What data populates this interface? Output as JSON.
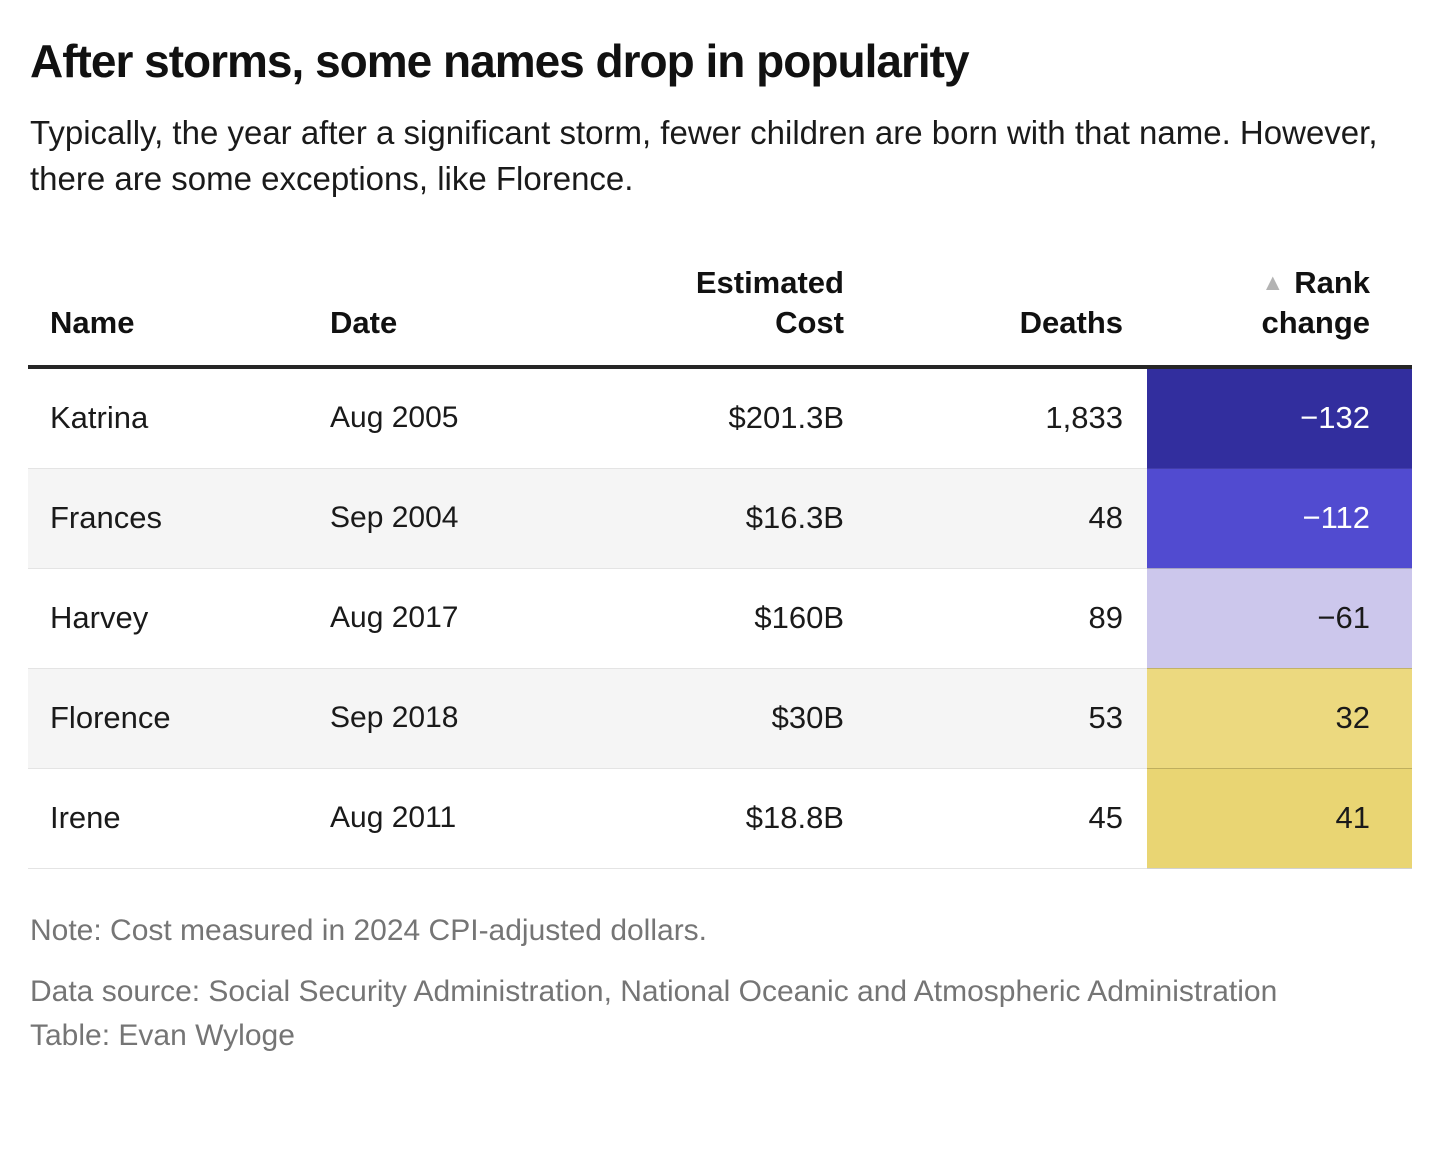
{
  "title": "After storms, some names drop in popularity",
  "subtitle": "Typically, the year after a significant storm, fewer children are born with that name. However, there are some exceptions, like Florence.",
  "colors": {
    "rank_negative_strong": "#322e9e",
    "rank_negative_medium": "#514bd0",
    "rank_negative_light": "#ccc7ec",
    "rank_positive_light": "#ecd97f",
    "rank_positive_medium": "#e9d573",
    "header_rule": "#262626",
    "row_stripe": "#f5f5f5",
    "footer_text": "#757575",
    "sort_icon_color": "#b3b3b3"
  },
  "table": {
    "header": {
      "name": "Name",
      "date": "Date",
      "cost_line1": "Estimated",
      "cost_line2": "Cost",
      "deaths": "Deaths",
      "rank_line1": "Rank",
      "rank_line2": "change",
      "sort_icon": "triangle-up",
      "sort_glyph": "▲"
    },
    "rows": [
      {
        "name": "Katrina",
        "date": "Aug 2005",
        "cost": "$201.3B",
        "deaths": "1,833",
        "rank_change": "−132",
        "rank_bg": "#322e9e",
        "rank_fg": "#ffffff"
      },
      {
        "name": "Frances",
        "date": "Sep 2004",
        "cost": "$16.3B",
        "deaths": "48",
        "rank_change": "−112",
        "rank_bg": "#514bd0",
        "rank_fg": "#ffffff"
      },
      {
        "name": "Harvey",
        "date": "Aug 2017",
        "cost": "$160B",
        "deaths": "89",
        "rank_change": "−61",
        "rank_bg": "#ccc7ec",
        "rank_fg": "#1a1a1a"
      },
      {
        "name": "Florence",
        "date": "Sep 2018",
        "cost": "$30B",
        "deaths": "53",
        "rank_change": "32",
        "rank_bg": "#ecd97f",
        "rank_fg": "#1a1a1a"
      },
      {
        "name": "Irene",
        "date": "Aug 2011",
        "cost": "$18.8B",
        "deaths": "45",
        "rank_change": "41",
        "rank_bg": "#e9d573",
        "rank_fg": "#1a1a1a"
      }
    ]
  },
  "footer": {
    "note": "Note: Cost measured in 2024 CPI-adjusted dollars.",
    "source": "Data source: Social Security Administration, National Oceanic and Atmospheric Administration",
    "credit": "Table: Evan Wyloge"
  },
  "chart_data": {
    "type": "table",
    "title": "After storms, some names drop in popularity",
    "subtitle": "Typically, the year after a significant storm, fewer children are born with that name. However, there are some exceptions, like Florence.",
    "columns": [
      "Name",
      "Date",
      "Estimated Cost",
      "Deaths",
      "Rank change"
    ],
    "rows": [
      [
        "Katrina",
        "Aug 2005",
        "$201.3B",
        1833,
        -132
      ],
      [
        "Frances",
        "Sep 2004",
        "$16.3B",
        48,
        -112
      ],
      [
        "Harvey",
        "Aug 2017",
        "$160B",
        89,
        -61
      ],
      [
        "Florence",
        "Sep 2018",
        "$30B",
        53,
        32
      ],
      [
        "Irene",
        "Aug 2011",
        "$18.8B",
        45,
        41
      ]
    ],
    "note": "Note: Cost measured in 2024 CPI-adjusted dollars.",
    "source": "Data source: Social Security Administration, National Oceanic and Atmospheric Administration",
    "credit": "Table: Evan Wyloge",
    "sorted_column": "Rank change",
    "sort_direction": "ascending"
  }
}
